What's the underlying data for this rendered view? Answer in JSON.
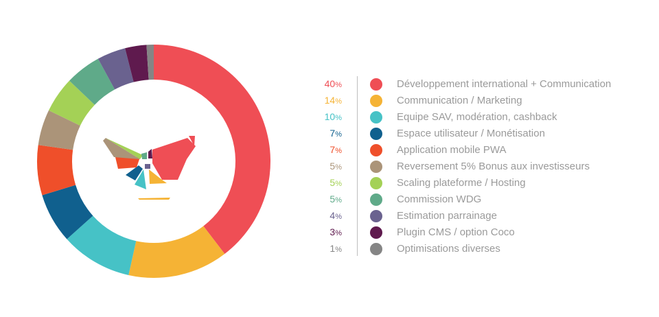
{
  "chart_data": {
    "type": "pie",
    "style": "donut",
    "slices": [
      {
        "label": "Développement international + Communication",
        "value": 40,
        "pct_text": "40",
        "color": "#ef4e55"
      },
      {
        "label": "Communication / Marketing",
        "value": 14,
        "pct_text": "14",
        "color": "#f5b335"
      },
      {
        "label": "Equipe SAV, modération, cashback",
        "value": 10,
        "pct_text": "10",
        "color": "#46c2c6"
      },
      {
        "label": "Espace utilisateur / Monétisation",
        "value": 7,
        "pct_text": "7",
        "color": "#10608e"
      },
      {
        "label": "Application mobile PWA",
        "value": 7,
        "pct_text": "7",
        "color": "#ef4f2a"
      },
      {
        "label": "Reversement 5% Bonus aux investisseurs",
        "value": 5,
        "pct_text": "5",
        "color": "#ab9479"
      },
      {
        "label": "Scaling plateforme / Hosting",
        "value": 5,
        "pct_text": "5",
        "color": "#a4d156"
      },
      {
        "label": "Commission WDG",
        "value": 5,
        "pct_text": "5",
        "color": "#5faa89"
      },
      {
        "label": "Estimation parrainage",
        "value": 4,
        "pct_text": "4",
        "color": "#6a628f"
      },
      {
        "label": "Plugin CMS / option Coco",
        "value": 3,
        "pct_text": "3",
        "color": "#5f1a4e"
      },
      {
        "label": "Optimisations diverses",
        "value": 1,
        "pct_text": "1",
        "color": "#858585"
      }
    ],
    "percent_symbol": "%",
    "legend_position": "right",
    "center_logo": "bird-logo"
  }
}
